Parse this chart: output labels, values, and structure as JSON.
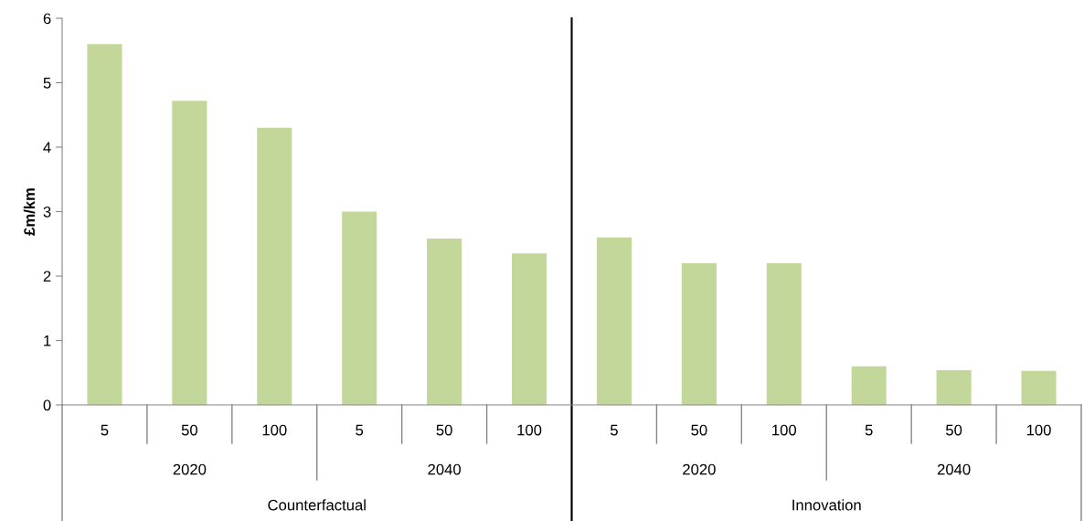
{
  "chart_data": {
    "type": "bar",
    "ylabel": "£m/km",
    "categories": [
      "5",
      "50",
      "100",
      "5",
      "50",
      "100",
      "5",
      "50",
      "100",
      "5",
      "50",
      "100"
    ],
    "values": [
      5.6,
      4.72,
      4.3,
      3.0,
      2.58,
      2.35,
      2.6,
      2.2,
      2.2,
      0.6,
      0.54,
      0.53
    ],
    "color": "#c4d79b",
    "ylim": [
      0,
      6
    ],
    "yticks": [
      0,
      1,
      2,
      3,
      4,
      5,
      6
    ],
    "grid": false,
    "annotations": [
      "2020",
      "2040",
      "2020",
      "2040",
      "Counterfactual",
      "Innovation"
    ]
  }
}
